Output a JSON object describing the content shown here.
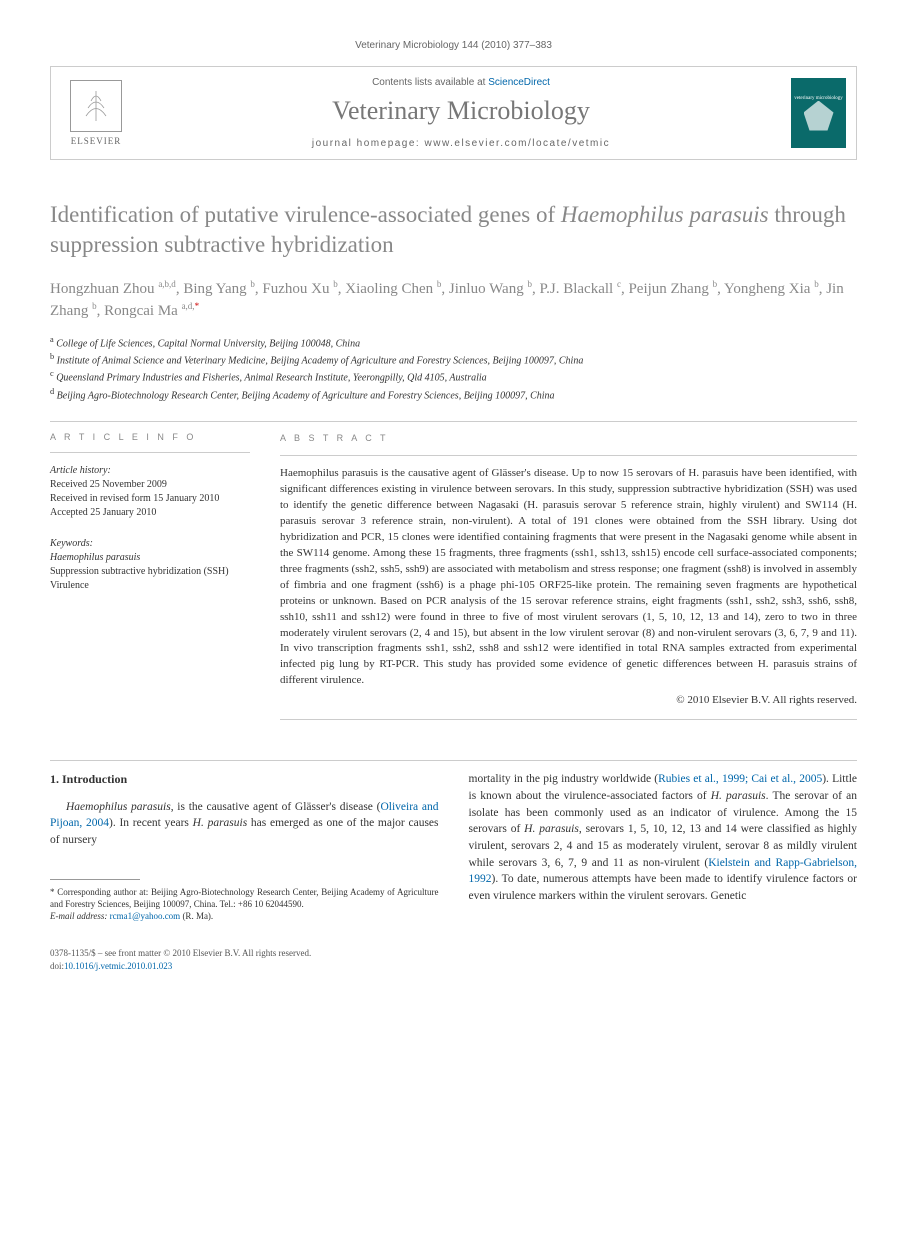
{
  "running_head": "Veterinary Microbiology 144 (2010) 377–383",
  "header": {
    "contents_line_prefix": "Contents lists available at ",
    "sciencedirect": "ScienceDirect",
    "journal_name": "Veterinary Microbiology",
    "homepage_prefix": "journal homepage: ",
    "homepage_url": "www.elsevier.com/locate/vetmic",
    "elsevier": "ELSEVIER",
    "cover_label": "veterinary microbiology"
  },
  "title_part1": "Identification of putative virulence-associated genes of ",
  "title_italic": "Haemophilus parasuis",
  "title_part2": " through suppression subtractive hybridization",
  "authors_html": "Hongzhuan Zhou <sup>a,b,d</sup>, Bing Yang <sup>b</sup>, Fuzhou Xu <sup>b</sup>, Xiaoling Chen <sup>b</sup>, Jinluo Wang <sup>b</sup>, P.J. Blackall <sup>c</sup>, Peijun Zhang <sup>b</sup>, Yongheng Xia <sup>b</sup>, Jin Zhang <sup>b</sup>, Rongcai Ma <sup>a,d,</sup>",
  "authors_corr": "*",
  "affiliations": {
    "a": "College of Life Sciences, Capital Normal University, Beijing 100048, China",
    "b": "Institute of Animal Science and Veterinary Medicine, Beijing Academy of Agriculture and Forestry Sciences, Beijing 100097, China",
    "c": "Queensland Primary Industries and Fisheries, Animal Research Institute, Yeerongpilly, Qld 4105, Australia",
    "d": "Beijing Agro-Biotechnology Research Center, Beijing Academy of Agriculture and Forestry Sciences, Beijing 100097, China"
  },
  "info": {
    "label_info": "A R T I C L E   I N F O",
    "history_head": "Article history:",
    "received": "Received 25 November 2009",
    "revised": "Received in revised form 15 January 2010",
    "accepted": "Accepted 25 January 2010",
    "kw_head": "Keywords:",
    "kw1": "Haemophilus parasuis",
    "kw2": "Suppression subtractive hybridization (SSH)",
    "kw3": "Virulence"
  },
  "abstract": {
    "label": "A B S T R A C T",
    "text": "Haemophilus parasuis is the causative agent of Glässer's disease. Up to now 15 serovars of H. parasuis have been identified, with significant differences existing in virulence between serovars. In this study, suppression subtractive hybridization (SSH) was used to identify the genetic difference between Nagasaki (H. parasuis serovar 5 reference strain, highly virulent) and SW114 (H. parasuis serovar 3 reference strain, non-virulent). A total of 191 clones were obtained from the SSH library. Using dot hybridization and PCR, 15 clones were identified containing fragments that were present in the Nagasaki genome while absent in the SW114 genome. Among these 15 fragments, three fragments (ssh1, ssh13, ssh15) encode cell surface-associated components; three fragments (ssh2, ssh5, ssh9) are associated with metabolism and stress response; one fragment (ssh8) is involved in assembly of fimbria and one fragment (ssh6) is a phage phi-105 ORF25-like protein. The remaining seven fragments are hypothetical proteins or unknown. Based on PCR analysis of the 15 serovar reference strains, eight fragments (ssh1, ssh2, ssh3, ssh6, ssh8, ssh10, ssh11 and ssh12) were found in three to five of most virulent serovars (1, 5, 10, 12, 13 and 14), zero to two in three moderately virulent serovars (2, 4 and 15), but absent in the low virulent serovar (8) and non-virulent serovars (3, 6, 7, 9 and 11). In vivo transcription fragments ssh1, ssh2, ssh8 and ssh12 were identified in total RNA samples extracted from experimental infected pig lung by RT-PCR. This study has provided some evidence of genetic differences between H. parasuis strains of different virulence.",
    "copyright": "© 2010 Elsevier B.V. All rights reserved."
  },
  "body": {
    "sec_head": "1. Introduction",
    "col1_p1_a": "Haemophilus parasuis, is the causative agent of Glässer's disease (",
    "col1_cite1": "Oliveira and Pijoan, 2004",
    "col1_p1_b": "). In recent years H. parasuis has emerged as one of the major causes of nursery",
    "col2_p1_a": "mortality in the pig industry worldwide (",
    "col2_cite1": "Rubies et al., 1999; Cai et al., 2005",
    "col2_p1_b": "). Little is known about the virulence-associated factors of H. parasuis. The serovar of an isolate has been commonly used as an indicator of virulence. Among the 15 serovars of H. parasuis, serovars 1, 5, 10, 12, 13 and 14 were classified as highly virulent, serovars 2, 4 and 15 as moderately virulent, serovar 8 as mildly virulent while serovars 3, 6, 7, 9 and 11 as non-virulent (",
    "col2_cite2": "Kielstein and Rapp-Gabrielson, 1992",
    "col2_p1_c": "). To date, numerous attempts have been made to identify virulence factors or even virulence markers within the virulent serovars. Genetic"
  },
  "footnote": {
    "corr": "* Corresponding author at: Beijing Agro-Biotechnology Research Center, Beijing Academy of Agriculture and Forestry Sciences, Beijing 100097, China. Tel.: +86 10 62044590.",
    "email_label": "E-mail address: ",
    "email": "rcma1@yahoo.com",
    "email_who": " (R. Ma)."
  },
  "footer": {
    "line1": "0378-1135/$ – see front matter © 2010 Elsevier B.V. All rights reserved.",
    "doi_prefix": "doi:",
    "doi": "10.1016/j.vetmic.2010.01.023"
  },
  "colors": {
    "link": "#0066aa",
    "title_gray": "#888888",
    "teal": "#0a6a6a"
  }
}
